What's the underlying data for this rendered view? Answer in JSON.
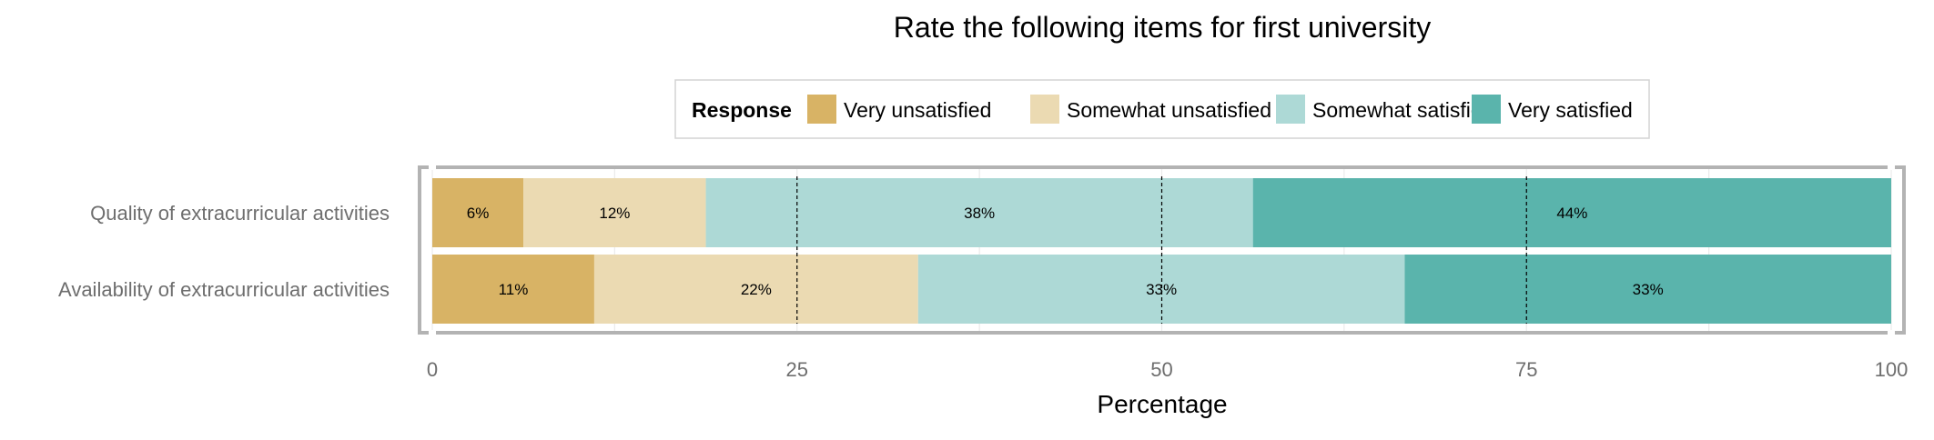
{
  "chart_data": {
    "type": "bar",
    "orientation": "horizontal",
    "stacked": true,
    "title": "Rate the following items for first university",
    "xlabel": "Percentage",
    "ylabel": "",
    "xlim": [
      0,
      100
    ],
    "xticks": [
      "0",
      "25",
      "50",
      "75",
      "100"
    ],
    "legend_title": "Response",
    "legend_position": "top",
    "categories": [
      "Quality of extracurricular activities",
      "Availability of extracurricular activities"
    ],
    "series": [
      {
        "name": "Very unsatisfied",
        "color": "#D8B365",
        "values": [
          6.25,
          11.1
        ],
        "labels": [
          "6%",
          "11%"
        ]
      },
      {
        "name": "Somewhat unsatisfied",
        "color": "#EBDAB2",
        "values": [
          12.5,
          22.2
        ],
        "labels": [
          "12%",
          "22%"
        ]
      },
      {
        "name": "Somewhat satisfied",
        "color": "#ADD9D6",
        "values": [
          37.5,
          33.35
        ],
        "labels": [
          "38%",
          "33%"
        ]
      },
      {
        "name": "Very satisfied",
        "color": "#5AB4AC",
        "values": [
          43.75,
          33.35
        ],
        "labels": [
          "44%",
          "33%"
        ]
      }
    ],
    "reference_lines": [
      25,
      50,
      75
    ],
    "grid": true
  }
}
